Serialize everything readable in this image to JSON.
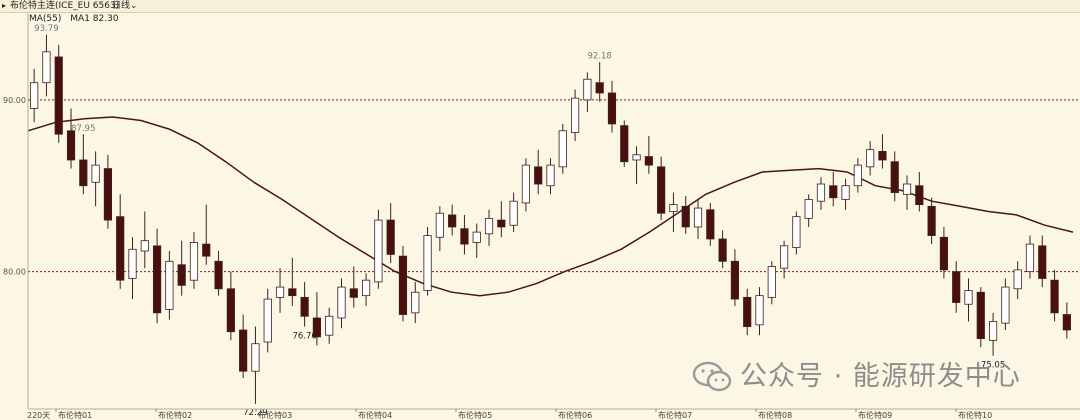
{
  "header": {
    "instrument": "布伦特主连(ICE_EU 6563)",
    "period_label": "日线"
  },
  "legend": {
    "ma_period": "MA(55)",
    "ma_value": "MA1 82.30"
  },
  "watermark": {
    "text": "公众号 · 能源研发中心"
  },
  "colors": {
    "background": "#fbf7e4",
    "up_candle": "#ffffff",
    "down_candle": "#4a1010",
    "ma_line": "#4a1414",
    "ref_line": "#8b1a1a"
  },
  "chart_data": {
    "type": "candlestick",
    "ylim": [
      72,
      95
    ],
    "yticks": [
      80.0,
      90.0
    ],
    "ytick_labels": [
      "80.00",
      "90.00"
    ],
    "reference_lines": [
      90,
      80
    ],
    "period_count_label": "220天",
    "x_labels": [
      "布伦特01",
      "布伦特02",
      "布伦特03",
      "布伦特04",
      "布伦特05",
      "布伦特06",
      "布伦特07",
      "布伦特08",
      "布伦特09",
      "布伦特10"
    ],
    "annotations": [
      {
        "label": "93.79",
        "type": "high",
        "value": 93.79
      },
      {
        "label": "92.18",
        "type": "high",
        "value": 92.18
      },
      {
        "label": "87.95",
        "type": "high",
        "value": 87.95
      },
      {
        "label": "76.76",
        "type": "low",
        "value": 76.76
      },
      {
        "label": "75.05",
        "type": "low",
        "value": 75.05
      },
      {
        "label": "72.29",
        "type": "low",
        "value": 72.29
      }
    ],
    "ma_series": {
      "name": "MA(55)",
      "points": [
        88.2,
        88.7,
        88.9,
        89.0,
        88.8,
        88.3,
        87.5,
        86.4,
        85.2,
        84.2,
        83.1,
        82.0,
        81.0,
        80.0,
        79.3,
        78.8,
        78.6,
        78.8,
        79.3,
        80.0,
        80.6,
        81.3,
        82.3,
        83.4,
        84.5,
        85.2,
        85.8,
        85.9,
        86.0,
        85.8,
        85.0,
        84.7,
        84.1,
        83.8,
        83.5,
        83.3,
        82.7,
        82.3
      ]
    },
    "ohlc": [
      [
        89.5,
        91.8,
        88.7,
        91.0
      ],
      [
        91.0,
        93.8,
        90.2,
        92.8
      ],
      [
        92.5,
        93.2,
        87.5,
        88.0
      ],
      [
        88.2,
        89.5,
        86.0,
        86.5
      ],
      [
        86.5,
        88.0,
        84.5,
        85.0
      ],
      [
        85.2,
        87.0,
        83.8,
        86.2
      ],
      [
        86.0,
        86.8,
        82.5,
        83.0
      ],
      [
        83.2,
        84.5,
        79.0,
        79.5
      ],
      [
        79.6,
        82.0,
        78.4,
        81.3
      ],
      [
        81.2,
        83.5,
        80.2,
        81.8
      ],
      [
        81.5,
        82.5,
        77.0,
        77.6
      ],
      [
        77.8,
        81.2,
        77.2,
        80.6
      ],
      [
        80.4,
        81.8,
        78.6,
        79.2
      ],
      [
        79.5,
        82.3,
        79.0,
        81.7
      ],
      [
        81.6,
        83.9,
        80.4,
        80.9
      ],
      [
        80.6,
        81.2,
        78.6,
        79.0
      ],
      [
        79.0,
        80.0,
        76.0,
        76.5
      ],
      [
        76.6,
        77.5,
        73.8,
        74.2
      ],
      [
        74.2,
        76.8,
        72.3,
        75.8
      ],
      [
        75.9,
        79.0,
        75.3,
        78.4
      ],
      [
        78.5,
        80.2,
        77.6,
        79.1
      ],
      [
        79.0,
        80.8,
        78.0,
        78.6
      ],
      [
        78.5,
        79.4,
        76.8,
        77.4
      ],
      [
        77.3,
        78.8,
        75.7,
        76.2
      ],
      [
        76.3,
        77.9,
        75.8,
        77.4
      ],
      [
        77.3,
        79.6,
        76.7,
        79.1
      ],
      [
        79.0,
        80.3,
        77.9,
        78.5
      ],
      [
        78.6,
        79.9,
        78.0,
        79.5
      ],
      [
        79.4,
        83.6,
        79.0,
        83.0
      ],
      [
        83.0,
        84.0,
        80.5,
        81.0
      ],
      [
        80.9,
        81.5,
        77.1,
        77.5
      ],
      [
        77.6,
        79.4,
        77.0,
        78.8
      ],
      [
        78.9,
        82.6,
        78.6,
        82.1
      ],
      [
        82.0,
        83.8,
        81.2,
        83.4
      ],
      [
        83.3,
        83.9,
        82.1,
        82.6
      ],
      [
        82.5,
        83.3,
        81.0,
        81.6
      ],
      [
        81.7,
        82.8,
        80.8,
        82.3
      ],
      [
        82.2,
        83.6,
        81.5,
        83.1
      ],
      [
        83.0,
        84.1,
        82.0,
        82.6
      ],
      [
        82.7,
        84.6,
        82.3,
        84.1
      ],
      [
        84.0,
        86.6,
        83.5,
        86.2
      ],
      [
        86.1,
        87.1,
        84.5,
        85.1
      ],
      [
        85.0,
        86.6,
        84.5,
        86.2
      ],
      [
        86.1,
        88.6,
        85.7,
        88.2
      ],
      [
        88.1,
        90.6,
        87.6,
        90.1
      ],
      [
        90.0,
        91.6,
        89.3,
        91.2
      ],
      [
        91.0,
        92.2,
        89.9,
        90.4
      ],
      [
        90.4,
        91.1,
        88.1,
        88.6
      ],
      [
        88.5,
        88.8,
        86.1,
        86.4
      ],
      [
        86.5,
        87.3,
        85.1,
        86.8
      ],
      [
        86.7,
        87.9,
        85.7,
        86.2
      ],
      [
        86.1,
        86.7,
        83.0,
        83.4
      ],
      [
        83.5,
        84.6,
        82.3,
        83.9
      ],
      [
        83.8,
        84.4,
        82.2,
        82.6
      ],
      [
        82.6,
        84.2,
        81.9,
        83.7
      ],
      [
        83.6,
        84.0,
        81.5,
        81.9
      ],
      [
        81.9,
        82.4,
        80.2,
        80.6
      ],
      [
        80.6,
        81.3,
        78.0,
        78.4
      ],
      [
        78.5,
        79.0,
        76.3,
        76.8
      ],
      [
        76.9,
        79.1,
        76.3,
        78.6
      ],
      [
        78.5,
        80.6,
        78.1,
        80.3
      ],
      [
        80.2,
        81.8,
        79.6,
        81.5
      ],
      [
        81.4,
        83.5,
        81.0,
        83.2
      ],
      [
        83.1,
        84.5,
        82.6,
        84.2
      ],
      [
        84.1,
        85.5,
        83.6,
        85.1
      ],
      [
        85.0,
        85.8,
        83.8,
        84.3
      ],
      [
        84.2,
        85.4,
        83.6,
        85.0
      ],
      [
        85.0,
        86.6,
        84.6,
        86.2
      ],
      [
        86.1,
        87.6,
        85.6,
        87.1
      ],
      [
        87.0,
        88.0,
        86.0,
        86.5
      ],
      [
        86.4,
        87.0,
        84.1,
        84.6
      ],
      [
        84.5,
        85.6,
        83.6,
        85.1
      ],
      [
        85.0,
        85.8,
        83.5,
        83.9
      ],
      [
        83.8,
        84.3,
        81.6,
        82.1
      ],
      [
        82.0,
        82.6,
        79.6,
        80.1
      ],
      [
        80.0,
        80.6,
        77.6,
        78.2
      ],
      [
        78.1,
        79.6,
        77.1,
        78.9
      ],
      [
        78.8,
        79.1,
        75.6,
        76.1
      ],
      [
        76.0,
        77.6,
        75.1,
        77.1
      ],
      [
        77.0,
        79.6,
        76.6,
        79.1
      ],
      [
        79.0,
        80.6,
        78.4,
        80.1
      ],
      [
        80.0,
        82.1,
        79.6,
        81.6
      ],
      [
        81.5,
        82.1,
        79.1,
        79.6
      ],
      [
        79.5,
        80.1,
        77.1,
        77.6
      ],
      [
        77.5,
        78.2,
        76.1,
        76.6
      ]
    ]
  }
}
